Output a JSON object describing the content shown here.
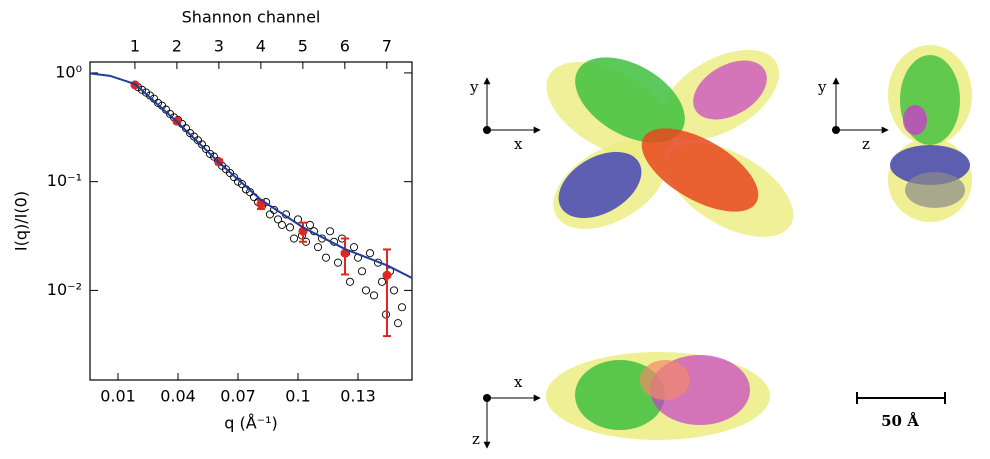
{
  "chart_data": {
    "type": "scatter",
    "xlabel": "q (Å⁻¹)",
    "ylabel": "I(q)/I(0)",
    "x2label": "Shannon channel",
    "xlim": [
      -0.004,
      0.157
    ],
    "xticks": [
      0.01,
      0.04,
      0.07,
      0.1,
      0.13
    ],
    "x2lim": [
      -0.07,
      7.6
    ],
    "x2ticks": [
      1,
      2,
      3,
      4,
      5,
      6,
      7
    ],
    "ylim": [
      0.0015,
      1.26
    ],
    "ylog": true,
    "yticks": [
      {
        "value": 1,
        "label": "10⁰"
      },
      {
        "value": 0.1,
        "label": "10⁻¹"
      },
      {
        "value": 0.01,
        "label": "10⁻²"
      }
    ],
    "series": [
      {
        "style": "open-circle",
        "color": "#000000",
        "x": [
          0.02,
          0.022,
          0.024,
          0.026,
          0.028,
          0.03,
          0.032,
          0.034,
          0.036,
          0.038,
          0.04,
          0.042,
          0.044,
          0.046,
          0.048,
          0.05,
          0.052,
          0.054,
          0.056,
          0.058,
          0.06,
          0.062,
          0.064,
          0.066,
          0.068,
          0.07,
          0.072,
          0.074,
          0.076,
          0.078,
          0.08,
          0.082,
          0.084,
          0.086,
          0.088,
          0.09,
          0.092,
          0.094,
          0.096,
          0.098,
          0.1,
          0.102,
          0.104,
          0.106,
          0.108,
          0.11,
          0.112,
          0.114,
          0.116,
          0.118,
          0.12,
          0.122,
          0.124,
          0.126,
          0.128,
          0.13,
          0.132,
          0.134,
          0.136,
          0.138,
          0.14,
          0.142,
          0.144,
          0.146,
          0.148,
          0.15,
          0.152
        ],
        "values": [
          0.74,
          0.7,
          0.66,
          0.62,
          0.58,
          0.53,
          0.5,
          0.46,
          0.42,
          0.39,
          0.37,
          0.34,
          0.31,
          0.28,
          0.26,
          0.24,
          0.22,
          0.2,
          0.18,
          0.17,
          0.155,
          0.14,
          0.13,
          0.12,
          0.11,
          0.1,
          0.095,
          0.085,
          0.08,
          0.072,
          0.065,
          0.06,
          0.065,
          0.05,
          0.055,
          0.045,
          0.04,
          0.05,
          0.038,
          0.03,
          0.045,
          0.032,
          0.028,
          0.04,
          0.035,
          0.025,
          0.03,
          0.02,
          0.035,
          0.028,
          0.018,
          0.03,
          0.022,
          0.012,
          0.025,
          0.02,
          0.015,
          0.01,
          0.022,
          0.009,
          0.018,
          0.012,
          0.006,
          0.015,
          0.01,
          0.005,
          0.007
        ]
      },
      {
        "style": "error-point",
        "color": "#e0261e",
        "x": [
          0.0185,
          0.0395,
          0.0605,
          0.0815,
          0.1025,
          0.1235,
          0.1445
        ],
        "values": [
          0.776,
          0.36,
          0.152,
          0.062,
          0.035,
          0.022,
          0.0138
        ],
        "errors": [
          0.02,
          0.015,
          0.008,
          0.006,
          0.007,
          0.008,
          0.01
        ]
      },
      {
        "style": "line",
        "color": "#1f3c9c",
        "x": [
          -0.004,
          0.006,
          0.0185,
          0.0395,
          0.0605,
          0.0815,
          0.1025,
          0.1235,
          0.1445,
          0.157
        ],
        "values": [
          0.99,
          0.94,
          0.79,
          0.355,
          0.15,
          0.068,
          0.038,
          0.024,
          0.017,
          0.013
        ]
      }
    ]
  },
  "structure_panels": {
    "axis_labels": [
      "y",
      "x",
      "y",
      "z",
      "x",
      "z"
    ],
    "scale_bar": "50 Å"
  }
}
